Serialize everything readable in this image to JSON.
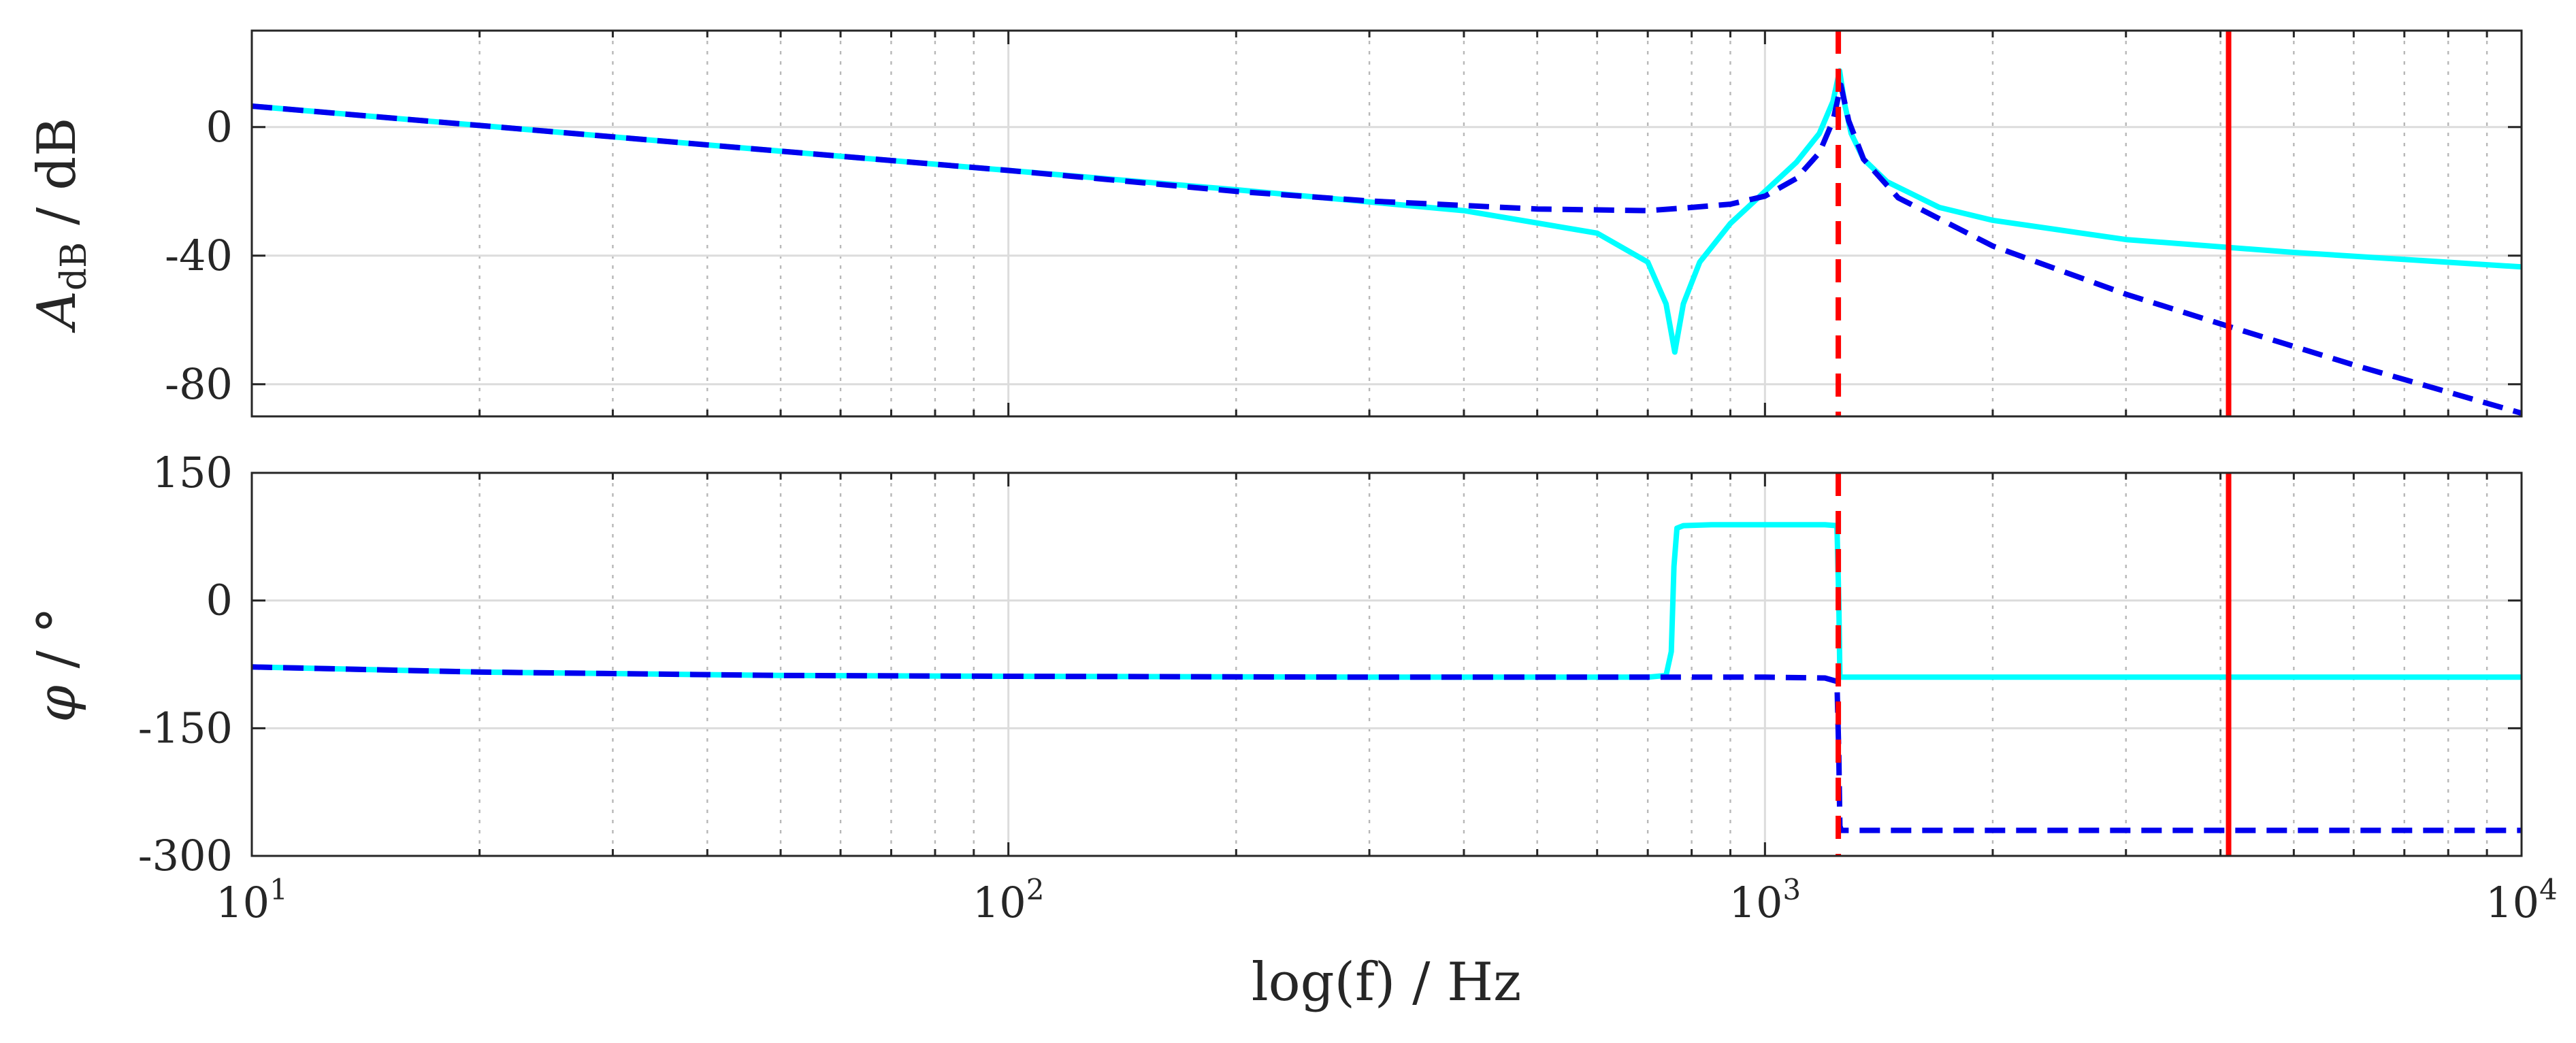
{
  "chart_data": [
    {
      "type": "line",
      "panel": "magnitude",
      "ylabel_main": "A",
      "ylabel_sub": "dB",
      "ylabel_unit": " / dB",
      "ylim": [
        -90,
        30
      ],
      "yticks": [
        0,
        -40,
        -80
      ],
      "ytick_labels": [
        "0",
        "-40",
        "-80"
      ],
      "xscale": "log",
      "xlim": [
        10,
        10000
      ],
      "grid": true,
      "series": [
        {
          "name": "cyan-solid",
          "color": "#00ffff",
          "style": "solid",
          "x": [
            10,
            20,
            50,
            100,
            200,
            400,
            600,
            700,
            740,
            760,
            780,
            820,
            900,
            1000,
            1100,
            1180,
            1230,
            1255,
            1275,
            1300,
            1350,
            1450,
            1700,
            2000,
            3000,
            5000,
            10000
          ],
          "y": [
            6.5,
            0.5,
            -7.5,
            -13.5,
            -19.5,
            -26,
            -33,
            -42,
            -55,
            -70,
            -55,
            -42,
            -30,
            -20,
            -11,
            -2,
            8,
            17.5,
            7,
            -2,
            -10,
            -17,
            -25,
            -29,
            -35,
            -39,
            -43.5
          ]
        },
        {
          "name": "blue-dashed",
          "color": "#0000ee",
          "style": "dashed",
          "x": [
            10,
            20,
            50,
            100,
            200,
            300,
            500,
            700,
            800,
            900,
            1000,
            1100,
            1180,
            1230,
            1260,
            1290,
            1350,
            1500,
            2000,
            3000,
            4100,
            6000,
            10000
          ],
          "y": [
            6.5,
            0.5,
            -7.5,
            -13.5,
            -20,
            -23,
            -25.5,
            -26,
            -25,
            -24,
            -21.5,
            -16,
            -8,
            2,
            13,
            2,
            -10,
            -22,
            -37,
            -52,
            -62,
            -74,
            -89
          ]
        }
      ],
      "vlines": [
        {
          "x": 1250,
          "color": "#ff0000",
          "style": "dashed"
        },
        {
          "x": 4100,
          "color": "#ff0000",
          "style": "solid"
        }
      ]
    },
    {
      "type": "line",
      "panel": "phase",
      "ylabel_main": "φ",
      "ylabel_unit": " / °",
      "ylim": [
        -300,
        150
      ],
      "yticks": [
        150,
        0,
        -150,
        -300
      ],
      "ytick_labels": [
        "150",
        "0",
        "-150",
        "-300"
      ],
      "xscale": "log",
      "xlim": [
        10,
        10000
      ],
      "xticks": [
        10,
        100,
        1000,
        10000
      ],
      "xtick_base": "10",
      "xtick_exponents": [
        "1",
        "2",
        "3",
        "4"
      ],
      "xlabel": "log(f) / Hz",
      "grid": true,
      "series": [
        {
          "name": "cyan-solid",
          "color": "#00ffff",
          "style": "solid",
          "x": [
            10,
            20,
            50,
            100,
            300,
            700,
            740,
            752,
            758,
            765,
            780,
            850,
            1000,
            1200,
            1245,
            1252,
            1256,
            1262,
            1300,
            2000,
            5000,
            10000
          ],
          "y": [
            -78,
            -84,
            -88,
            -89,
            -90,
            -90,
            -88,
            -60,
            40,
            85,
            88,
            89,
            89,
            89,
            88,
            0,
            -88,
            -90,
            -90,
            -90,
            -90,
            -90
          ]
        },
        {
          "name": "blue-dashed",
          "color": "#0000ee",
          "style": "dashed",
          "x": [
            10,
            20,
            50,
            100,
            300,
            700,
            1000,
            1200,
            1245,
            1252,
            1256,
            1262,
            1300,
            2000,
            5000,
            10000
          ],
          "y": [
            -78,
            -84,
            -88,
            -89,
            -90,
            -90,
            -90,
            -91,
            -95,
            -180,
            -265,
            -270,
            -270,
            -270,
            -270,
            -270
          ]
        }
      ],
      "vlines": [
        {
          "x": 1250,
          "color": "#ff0000",
          "style": "dashed"
        },
        {
          "x": 4100,
          "color": "#ff0000",
          "style": "solid"
        }
      ]
    }
  ]
}
